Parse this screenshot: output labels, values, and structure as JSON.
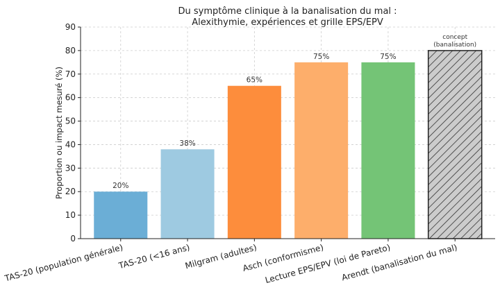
{
  "chart_data": {
    "type": "bar",
    "title_lines": [
      "Du symptôme clinique à la banalisation du mal :",
      "Alexithymie, expériences et grille EPS/EPV"
    ],
    "ylabel": "Proportion ou impact mesuré (%)",
    "xlabel": "",
    "ylim": [
      0,
      90
    ],
    "yticks": [
      0,
      10,
      20,
      30,
      40,
      50,
      60,
      70,
      80,
      90
    ],
    "grid": true,
    "categories": [
      "TAS-20 (population générale)",
      "TAS-20 (<16 ans)",
      "Milgram (adultes)",
      "Asch (conformisme)",
      "Lecture EPS/EPV (loi de Pareto)",
      "Arendt (banalisation du mal)"
    ],
    "values": [
      20,
      38,
      65,
      75,
      75,
      80
    ],
    "data_labels": [
      "20%",
      "38%",
      "65%",
      "75%",
      "75%",
      ""
    ],
    "colors": [
      "#6baed6",
      "#9ecae1",
      "#fd8d3c",
      "#fdae6b",
      "#74c476",
      "#cccccc"
    ],
    "hatched": [
      false,
      false,
      false,
      false,
      false,
      true
    ],
    "annotation": {
      "category_index": 5,
      "lines": [
        "concept",
        "(banalisation)"
      ]
    }
  }
}
